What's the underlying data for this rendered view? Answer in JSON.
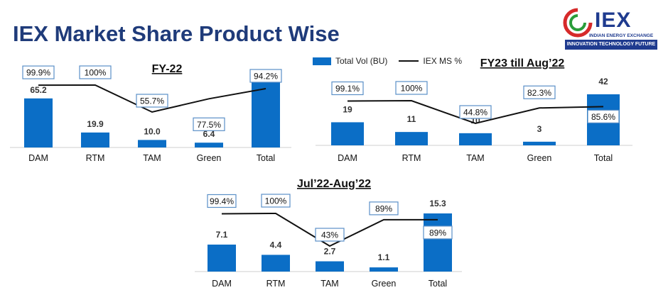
{
  "page": {
    "title": "IEX Market Share Product Wise"
  },
  "logo": {
    "name": "IEX",
    "tagline": "INDIAN ENERGY EXCHANGE",
    "band": "INNOVATION  TECHNOLOGY  FUTURE"
  },
  "legend": {
    "bar_label": "Total Vol (BU)",
    "line_label": "IEX MS %"
  },
  "colors": {
    "bar": "#0b6ec6",
    "line": "#111111",
    "title": "#1f3b7a"
  },
  "chart_data": [
    {
      "type": "bar",
      "title": "FY-22",
      "categories": [
        "DAM",
        "RTM",
        "TAM",
        "Green",
        "Total"
      ],
      "series": [
        {
          "name": "Total Vol (BU)",
          "values": [
            65.2,
            19.9,
            10.0,
            6.4,
            94.2
          ],
          "labels": [
            "65.2",
            "19.9",
            "10.0",
            "6.4",
            ""
          ]
        },
        {
          "name": "IEX MS %",
          "type": "line",
          "values": [
            99.9,
            100,
            55.7,
            77.5,
            94.2
          ],
          "labels": [
            "99.9%",
            "100%",
            "55.7%",
            "77.5%",
            "94.2%"
          ]
        }
      ]
    },
    {
      "type": "bar",
      "title": "FY23 till Aug’22",
      "categories": [
        "DAM",
        "RTM",
        "TAM",
        "Green",
        "Total"
      ],
      "series": [
        {
          "name": "Total Vol (BU)",
          "values": [
            19,
            11,
            10,
            3,
            42
          ],
          "labels": [
            "19",
            "11",
            "10",
            "3",
            "42"
          ]
        },
        {
          "name": "IEX MS %",
          "type": "line",
          "values": [
            99.1,
            100,
            44.8,
            82.3,
            85.6
          ],
          "labels": [
            "99.1%",
            "100%",
            "44.8%",
            "82.3%",
            "85.6%"
          ]
        }
      ]
    },
    {
      "type": "bar",
      "title": "Jul’22-Aug’22",
      "categories": [
        "DAM",
        "RTM",
        "TAM",
        "Green",
        "Total"
      ],
      "series": [
        {
          "name": "Total Vol (BU)",
          "values": [
            7.1,
            4.4,
            2.7,
            1.1,
            15.3
          ],
          "labels": [
            "7.1",
            "4.4",
            "2.7",
            "1.1",
            "15.3"
          ]
        },
        {
          "name": "IEX MS %",
          "type": "line",
          "values": [
            99.4,
            100,
            43,
            89,
            89
          ],
          "labels": [
            "99.4%",
            "100%",
            "43%",
            "89%",
            "89%"
          ]
        }
      ]
    }
  ]
}
